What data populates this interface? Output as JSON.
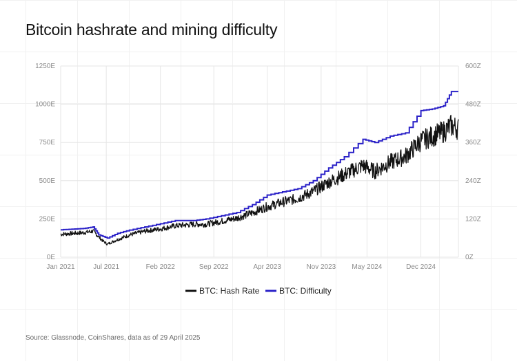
{
  "title": "Bitcoin hashrate and mining difficulty",
  "source": "Source: Glassnode, CoinShares, data as of 29 April 2025",
  "colors": {
    "hash_rate": "#111111",
    "difficulty": "#2b22c8",
    "grid": "#e6e6e6",
    "tick": "#8a8a8a"
  },
  "chart_data": {
    "type": "line",
    "x_tick_labels": [
      "Jan 2021",
      "Jul 2021",
      "Feb 2022",
      "Sep 2022",
      "Apr 2023",
      "Nov 2023",
      "May 2024",
      "Dec 2024"
    ],
    "x_ticks": [
      "2021-01-01",
      "2021-07-01",
      "2022-02-01",
      "2022-09-01",
      "2023-04-01",
      "2023-11-01",
      "2024-05-01",
      "2024-12-01"
    ],
    "xlim": [
      "2021-01-01",
      "2025-04-29"
    ],
    "y_left": {
      "ticks": [
        0,
        250,
        500,
        750,
        1000,
        1250
      ],
      "tick_labels": [
        "0E",
        "250E",
        "500E",
        "750E",
        "1000E",
        "1250E"
      ],
      "ylim": [
        0,
        1250
      ]
    },
    "y_right": {
      "ticks": [
        0,
        120,
        240,
        360,
        480,
        600
      ],
      "tick_labels": [
        "0Z",
        "120Z",
        "240Z",
        "360Z",
        "480Z",
        "600Z"
      ],
      "ylim": [
        0,
        600
      ]
    },
    "grid": true,
    "legend": "bottom-center",
    "series": [
      {
        "name": "BTC: Hash Rate",
        "axis": "left",
        "x": [
          "2021-01-01",
          "2021-02-15",
          "2021-04-01",
          "2021-05-10",
          "2021-06-15",
          "2021-07-05",
          "2021-08-15",
          "2021-10-01",
          "2021-12-01",
          "2022-02-01",
          "2022-04-01",
          "2022-06-15",
          "2022-08-01",
          "2022-10-01",
          "2022-12-01",
          "2023-02-01",
          "2023-04-01",
          "2023-06-01",
          "2023-08-01",
          "2023-10-01",
          "2023-12-01",
          "2024-02-01",
          "2024-04-15",
          "2024-06-01",
          "2024-08-01",
          "2024-10-01",
          "2024-12-01",
          "2025-01-15",
          "2025-03-01",
          "2025-04-01",
          "2025-04-29"
        ],
        "values": [
          150,
          155,
          160,
          170,
          110,
          85,
          115,
          145,
          170,
          185,
          205,
          215,
          215,
          235,
          255,
          290,
          330,
          360,
          385,
          430,
          490,
          540,
          600,
          560,
          620,
          660,
          760,
          790,
          820,
          860,
          840
        ]
      },
      {
        "name": "BTC: Difficulty",
        "axis": "right",
        "x": [
          "2021-01-01",
          "2021-02-15",
          "2021-04-01",
          "2021-05-10",
          "2021-06-01",
          "2021-07-05",
          "2021-08-15",
          "2021-10-01",
          "2021-12-01",
          "2022-02-01",
          "2022-04-01",
          "2022-06-15",
          "2022-08-01",
          "2022-10-01",
          "2022-12-01",
          "2023-02-01",
          "2023-04-01",
          "2023-06-01",
          "2023-08-01",
          "2023-10-01",
          "2023-12-01",
          "2024-02-01",
          "2024-04-15",
          "2024-06-01",
          "2024-08-01",
          "2024-10-01",
          "2024-12-01",
          "2025-01-15",
          "2025-03-01",
          "2025-04-01",
          "2025-04-29"
        ],
        "values": [
          86,
          88,
          90,
          95,
          70,
          60,
          75,
          85,
          95,
          105,
          115,
          115,
          120,
          130,
          140,
          165,
          195,
          205,
          215,
          240,
          280,
          315,
          370,
          360,
          380,
          390,
          460,
          465,
          475,
          520,
          520
        ]
      }
    ]
  }
}
